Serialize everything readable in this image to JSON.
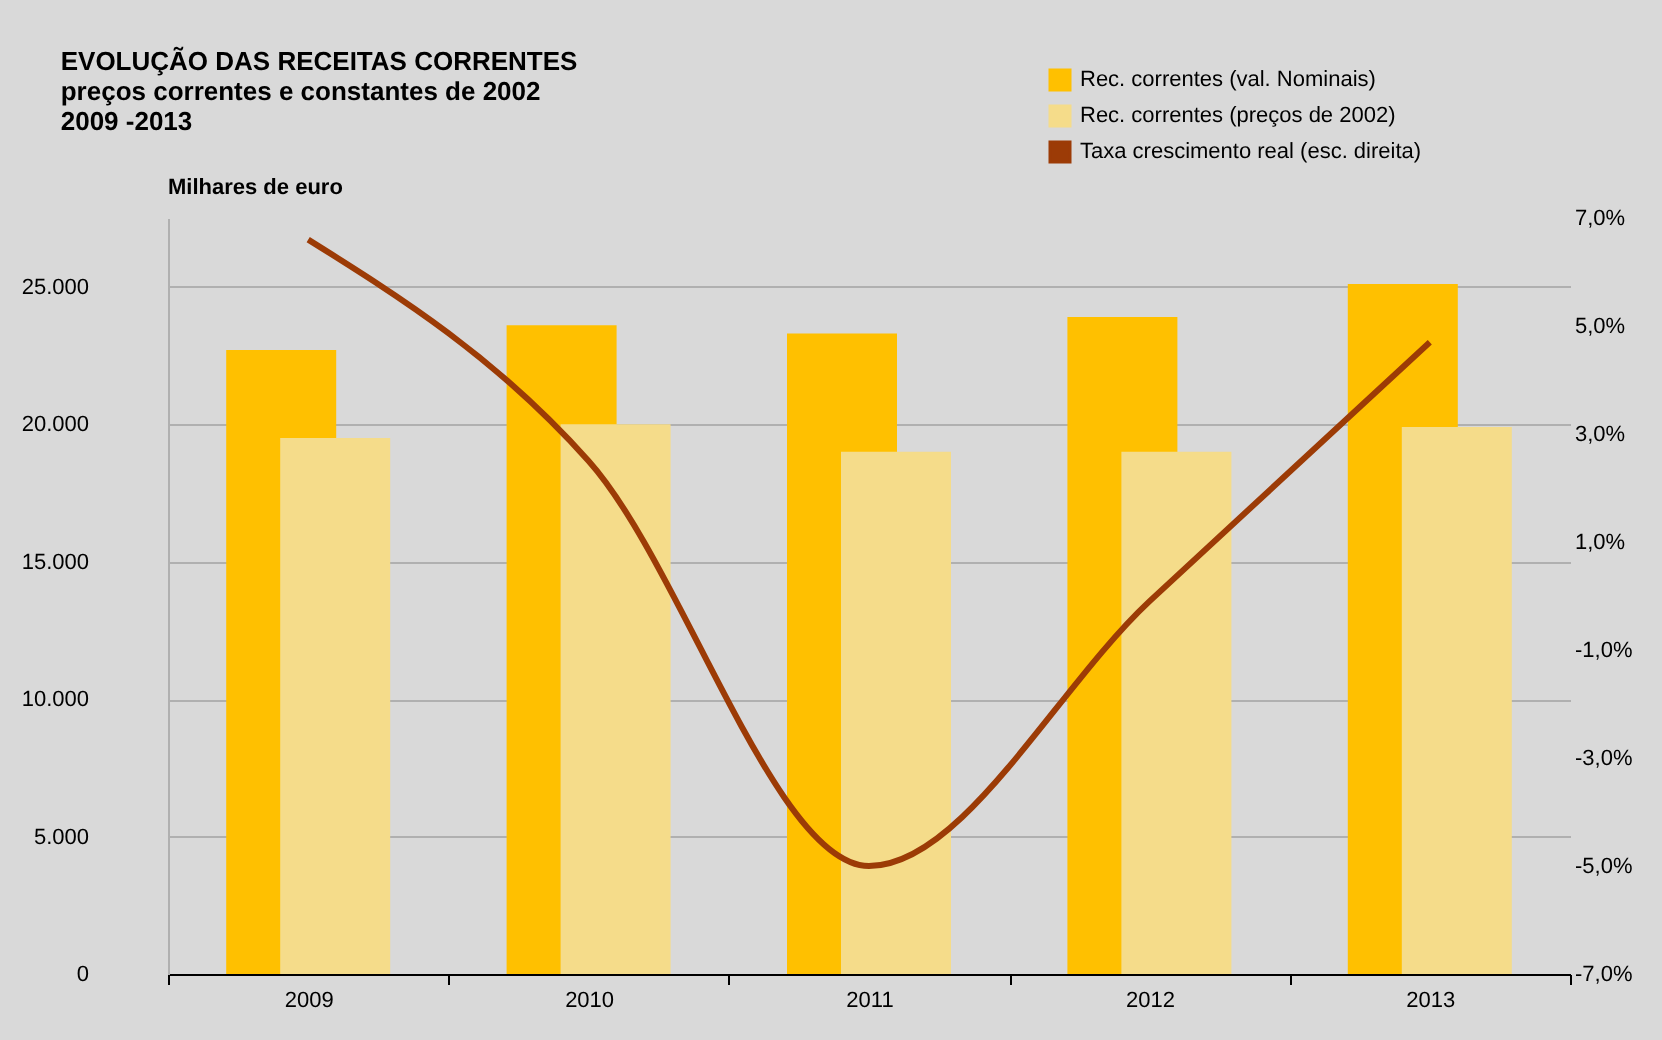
{
  "chart_data": {
    "type": "bar",
    "title": "EVOLUÇÃO DAS RECEITAS CORRENTES\npreços correntes e constantes de 2002\n2009 -2013",
    "ylabel": "Milhares de euro",
    "categories": [
      "2009",
      "2010",
      "2011",
      "2012",
      "2013"
    ],
    "series": [
      {
        "name": "Rec. correntes (val. Nominais)",
        "color": "#ffc000",
        "values": [
          22700,
          23600,
          23300,
          23900,
          25100
        ]
      },
      {
        "name": "Rec. correntes (preços de 2002)",
        "color": "#f5dc8a",
        "values": [
          19500,
          20000,
          19000,
          19000,
          19900
        ]
      },
      {
        "name": "Taxa crescimento real (esc. direita)",
        "color": "#9c3b06",
        "type": "line",
        "axis": "y2",
        "values": [
          6.6,
          2.5,
          -5.0,
          -0.1,
          4.7
        ]
      }
    ],
    "ylim": [
      0,
      27500
    ],
    "yticks": [
      0,
      {
        "value": 5000,
        "label": "5.000"
      },
      {
        "value": 10000,
        "label": "10.000"
      },
      {
        "value": 15000,
        "label": "15.000"
      },
      {
        "value": 20000,
        "label": "20.000"
      },
      {
        "value": 25000,
        "label": "25.000"
      }
    ],
    "y2lim": [
      -7,
      7
    ],
    "y2ticks": [
      {
        "value": -7,
        "label": "-7,0%"
      },
      {
        "value": -5,
        "label": "-5,0%"
      },
      {
        "value": -3,
        "label": "-3,0%"
      },
      {
        "value": -1,
        "label": "-1,0%"
      },
      {
        "value": 1,
        "label": "1,0%"
      },
      {
        "value": 3,
        "label": "3,0%"
      },
      {
        "value": 5,
        "label": "5,0%"
      },
      {
        "value": 7,
        "label": "7,0%"
      }
    ],
    "grid": "y",
    "legend": "top right",
    "marker": "none",
    "line_style": "solid"
  }
}
